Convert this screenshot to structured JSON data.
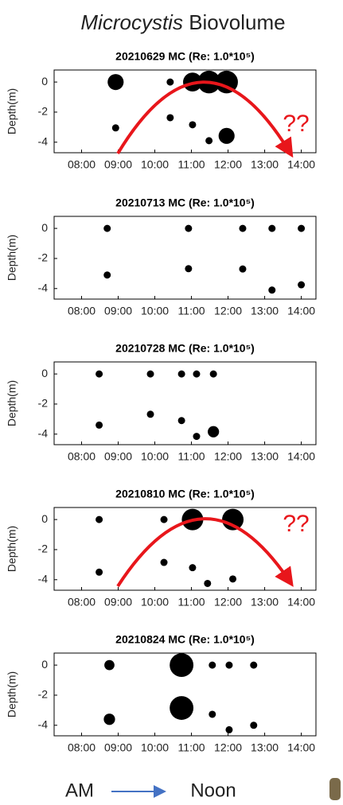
{
  "header": {
    "title_italic": "Microcystis",
    "title": "Biovolume"
  },
  "footer": {
    "left": "AM",
    "right": "Noon"
  },
  "chart_data": [
    {
      "type": "scatter",
      "title": "20210629 MC (Re: 1.0*10⁵)",
      "ylabel": "Depth(m)",
      "color": "#000000",
      "annotation": "??",
      "x": [
        8.93,
        10.42,
        11.03,
        11.48,
        11.96,
        8.93,
        10.42,
        11.03,
        11.48,
        11.96
      ],
      "y": [
        0,
        0,
        0,
        0,
        0,
        -3.05,
        -2.37,
        -2.84,
        -3.9,
        -3.58
      ],
      "sizes": [
        5,
        1,
        7,
        10,
        10,
        1,
        1,
        1,
        1,
        5
      ],
      "xlim": [
        7.25,
        14.4
      ],
      "ylim": [
        -4.7,
        0.8
      ],
      "xticks": [
        {
          "value": 8,
          "label": "08:00"
        },
        {
          "value": 9,
          "label": "09:00"
        },
        {
          "value": 10,
          "label": "10:00"
        },
        {
          "value": 11,
          "label": "11:00"
        },
        {
          "value": 12,
          "label": "12:00"
        },
        {
          "value": 13,
          "label": "13:00"
        },
        {
          "value": 14,
          "label": "14:00"
        }
      ],
      "yticks": [
        0,
        -2,
        -4
      ]
    },
    {
      "type": "scatter",
      "title": "20210713 MC (Re: 1.0*10⁵)",
      "ylabel": "Depth(m)",
      "color": "#000000",
      "x": [
        8.7,
        10.92,
        12.4,
        13.2,
        14.0,
        8.7,
        10.92,
        12.4,
        13.2,
        14.0
      ],
      "y": [
        0,
        0,
        0,
        0,
        0,
        -3.1,
        -2.68,
        -2.7,
        -4.1,
        -3.75
      ],
      "sizes": [
        1,
        1,
        1,
        1,
        1,
        1,
        1,
        1,
        1,
        1
      ],
      "xlim": [
        7.25,
        14.4
      ],
      "ylim": [
        -4.7,
        0.8
      ],
      "xticks": [
        {
          "value": 8,
          "label": "08:00"
        },
        {
          "value": 9,
          "label": "09:00"
        },
        {
          "value": 10,
          "label": "10:00"
        },
        {
          "value": 11,
          "label": "11:00"
        },
        {
          "value": 12,
          "label": "12:00"
        },
        {
          "value": 13,
          "label": "13:00"
        },
        {
          "value": 14,
          "label": "14:00"
        }
      ],
      "yticks": [
        0,
        -2,
        -4
      ]
    },
    {
      "type": "scatter",
      "title": "20210728 MC (Re: 1.0*10⁵)",
      "ylabel": "Depth(m)",
      "color": "#000000",
      "x": [
        8.48,
        9.88,
        10.73,
        11.14,
        11.6,
        8.48,
        9.88,
        10.73,
        11.14,
        11.6
      ],
      "y": [
        0,
        0,
        0,
        0,
        0,
        -3.4,
        -2.68,
        -3.1,
        -4.15,
        -3.84
      ],
      "sizes": [
        1,
        1,
        1,
        1,
        1,
        1,
        1,
        1,
        1,
        2.5
      ],
      "xlim": [
        7.25,
        14.4
      ],
      "ylim": [
        -4.7,
        0.8
      ],
      "xticks": [
        {
          "value": 8,
          "label": "08:00"
        },
        {
          "value": 9,
          "label": "09:00"
        },
        {
          "value": 10,
          "label": "10:00"
        },
        {
          "value": 11,
          "label": "11:00"
        },
        {
          "value": 12,
          "label": "12:00"
        },
        {
          "value": 13,
          "label": "13:00"
        },
        {
          "value": 14,
          "label": "14:00"
        }
      ],
      "yticks": [
        0,
        -2,
        -4
      ]
    },
    {
      "type": "scatter",
      "title": "20210810 MC (Re: 1.0*10⁵)",
      "ylabel": "Depth(m)",
      "color": "#000000",
      "annotation": "??",
      "x": [
        8.48,
        10.25,
        11.03,
        12.13,
        8.48,
        10.25,
        11.03,
        11.44,
        12.13
      ],
      "y": [
        0,
        0,
        0,
        0,
        -3.5,
        -2.85,
        -3.2,
        -4.25,
        -3.95
      ],
      "sizes": [
        1,
        1,
        9,
        9,
        1,
        1,
        1,
        1,
        1
      ],
      "xlim": [
        7.25,
        14.4
      ],
      "ylim": [
        -4.7,
        0.8
      ],
      "xticks": [
        {
          "value": 8,
          "label": "08:00"
        },
        {
          "value": 9,
          "label": "09:00"
        },
        {
          "value": 10,
          "label": "10:00"
        },
        {
          "value": 11,
          "label": "11:00"
        },
        {
          "value": 12,
          "label": "12:00"
        },
        {
          "value": 13,
          "label": "13:00"
        },
        {
          "value": 14,
          "label": "14:00"
        }
      ],
      "yticks": [
        0,
        -2,
        -4
      ]
    },
    {
      "type": "scatter",
      "title": "20210824 MC (Re: 1.0*10⁵)",
      "ylabel": "Depth(m)",
      "color": "#000000",
      "x": [
        8.76,
        10.73,
        11.57,
        12.03,
        12.7,
        8.76,
        10.73,
        11.57,
        12.03,
        12.7
      ],
      "y": [
        0,
        0,
        0,
        0,
        0,
        -3.6,
        -2.85,
        -3.27,
        -4.3,
        -4.0
      ],
      "sizes": [
        2,
        11,
        1,
        1,
        1,
        2.5,
        11,
        1,
        1,
        1
      ],
      "xlim": [
        7.25,
        14.4
      ],
      "ylim": [
        -4.7,
        0.8
      ],
      "xticks": [
        {
          "value": 8,
          "label": "08:00"
        },
        {
          "value": 9,
          "label": "09:00"
        },
        {
          "value": 10,
          "label": "10:00"
        },
        {
          "value": 11,
          "label": "11:00"
        },
        {
          "value": 12,
          "label": "12:00"
        },
        {
          "value": 13,
          "label": "13:00"
        },
        {
          "value": 14,
          "label": "14:00"
        }
      ],
      "yticks": [
        0,
        -2,
        -4
      ]
    }
  ]
}
